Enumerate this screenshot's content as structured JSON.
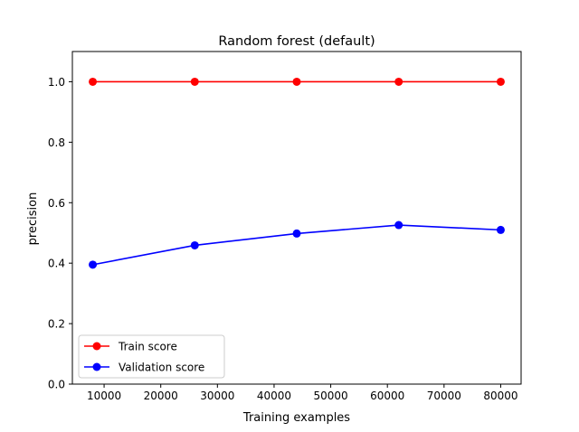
{
  "chart_data": {
    "type": "line",
    "title": "Random forest (default)",
    "xlabel": "Training examples",
    "ylabel": "precision",
    "xlim": [
      4400,
      83600
    ],
    "ylim": [
      0.0,
      1.1
    ],
    "xticks": [
      10000,
      20000,
      30000,
      40000,
      50000,
      60000,
      70000,
      80000
    ],
    "yticks": [
      0.0,
      0.2,
      0.4,
      0.6,
      0.8,
      1.0
    ],
    "xtick_labels": [
      "10000",
      "20000",
      "30000",
      "40000",
      "50000",
      "60000",
      "70000",
      "80000"
    ],
    "ytick_labels": [
      "0.0",
      "0.2",
      "0.4",
      "0.6",
      "0.8",
      "1.0"
    ],
    "grid": false,
    "legend_position": "lower-left",
    "x": [
      8000,
      26000,
      44000,
      62000,
      80000
    ],
    "series": [
      {
        "name": "Train score",
        "color": "#ff0000",
        "values": [
          1.0,
          1.0,
          1.0,
          1.0,
          1.0
        ]
      },
      {
        "name": "Validation score",
        "color": "#0000ff",
        "values": [
          0.395,
          0.459,
          0.498,
          0.526,
          0.51
        ]
      }
    ]
  }
}
